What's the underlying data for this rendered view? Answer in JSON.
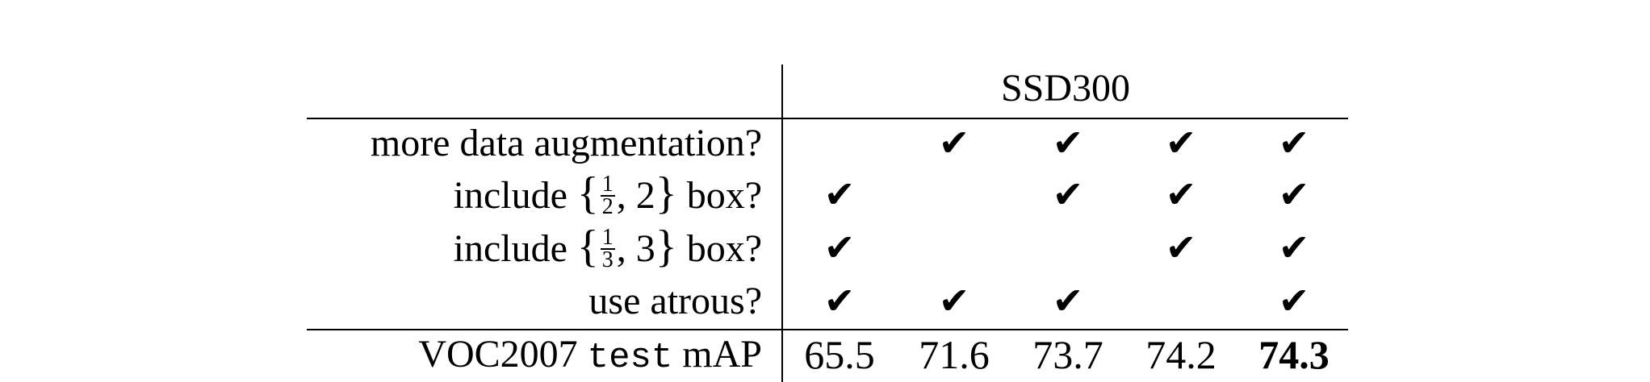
{
  "header": {
    "title": "SSD300"
  },
  "rows": [
    {
      "label": "more data augmentation?",
      "checks": [
        false,
        true,
        true,
        true,
        true
      ]
    },
    {
      "label_prefix": "include ",
      "brace_open": "{",
      "frac_num": "1",
      "frac_den": "2",
      "after_frac": ", 2",
      "brace_close": "}",
      "label_suffix": " box?",
      "checks": [
        true,
        false,
        true,
        true,
        true
      ]
    },
    {
      "label_prefix": "include ",
      "brace_open": "{",
      "frac_num": "1",
      "frac_den": "3",
      "after_frac": ", 3",
      "brace_close": "}",
      "label_suffix": " box?",
      "checks": [
        true,
        false,
        false,
        true,
        true
      ]
    },
    {
      "label": "use atrous?",
      "checks": [
        true,
        true,
        true,
        false,
        true
      ]
    }
  ],
  "result_row": {
    "label_a": "VOC2007 ",
    "label_mono": "test",
    "label_b": " mAP",
    "values": [
      "65.5",
      "71.6",
      "73.7",
      "74.2",
      "74.3"
    ],
    "best_index": 4
  },
  "check_glyph": "✔"
}
